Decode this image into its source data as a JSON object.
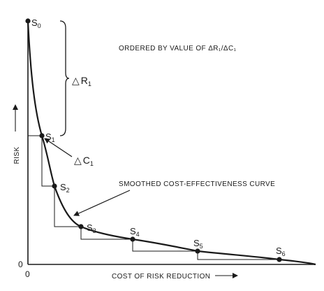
{
  "figure": {
    "heading": "ORDERED BY VALUE OF ΔR₁/ΔC₁",
    "y_axis_label": "RISK",
    "x_axis_label": "COST OF RISK REDUCTION",
    "origin_y": "0",
    "origin_x": "0",
    "curve_label": "SMOOTHED COST-EFFECTIVENESS CURVE",
    "delta_r": {
      "symbol": "△",
      "letter": "R",
      "sub": "1"
    },
    "delta_c": {
      "symbol": "△",
      "letter": "C",
      "sub": "1"
    },
    "points": [
      {
        "letter": "S",
        "sub": "0"
      },
      {
        "letter": "S",
        "sub": "1"
      },
      {
        "letter": "S",
        "sub": "2"
      },
      {
        "letter": "S",
        "sub": "3"
      },
      {
        "letter": "S",
        "sub": "4"
      },
      {
        "letter": "S",
        "sub": "5"
      },
      {
        "letter": "S",
        "sub": "6"
      }
    ]
  },
  "colors": {
    "ink": "#1a1a1a",
    "background": "#ffffff"
  }
}
